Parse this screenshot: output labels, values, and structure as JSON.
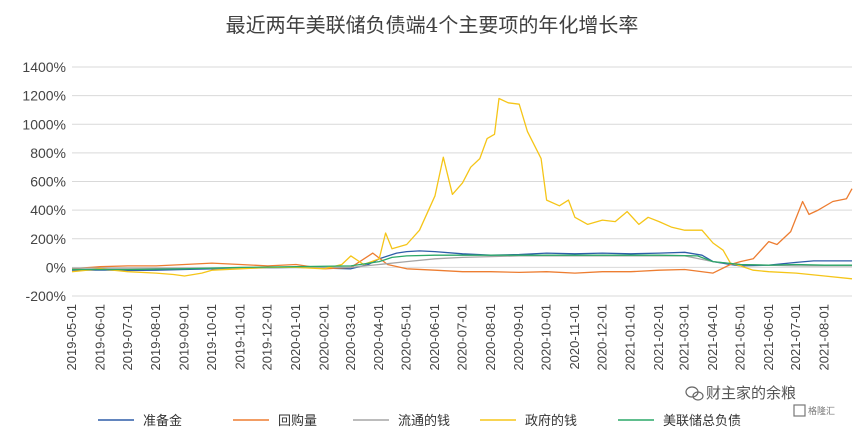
{
  "chart_data": {
    "type": "line",
    "title": "最近两年美联储负债端4个主要项的年化增长率",
    "xlabel": "",
    "ylabel": "",
    "ylim": [
      -200,
      1400
    ],
    "yticks": [
      -200,
      0,
      200,
      400,
      600,
      800,
      1000,
      1200,
      1400
    ],
    "ytick_labels": [
      "-200%",
      "0%",
      "200%",
      "400%",
      "600%",
      "800%",
      "1000%",
      "1200%",
      "1400%"
    ],
    "x_tick_labels": [
      "2019-05-01",
      "2019-06-01",
      "2019-07-01",
      "2019-08-01",
      "2019-09-01",
      "2019-10-01",
      "2019-11-01",
      "2019-12-01",
      "2020-01-01",
      "2020-02-01",
      "2020-03-01",
      "2020-04-01",
      "2020-05-01",
      "2020-06-01",
      "2020-07-01",
      "2020-08-01",
      "2020-09-01",
      "2020-10-01",
      "2020-11-01",
      "2020-12-01",
      "2021-01-01",
      "2021-02-01",
      "2021-03-01",
      "2021-04-01",
      "2021-05-01",
      "2021-06-01",
      "2021-07-01",
      "2021-08-01"
    ],
    "grid": true,
    "legend_position": "bottom",
    "series": [
      {
        "name": "准备金",
        "color": "#2E5DA8",
        "points": [
          [
            "2019-05-01",
            -20
          ],
          [
            "2019-06-01",
            -18
          ],
          [
            "2019-07-01",
            -22
          ],
          [
            "2019-08-01",
            -20
          ],
          [
            "2019-09-01",
            -15
          ],
          [
            "2019-10-01",
            -10
          ],
          [
            "2019-11-01",
            -5
          ],
          [
            "2019-12-01",
            -3
          ],
          [
            "2020-01-01",
            0
          ],
          [
            "2020-02-01",
            -5
          ],
          [
            "2020-03-01",
            -10
          ],
          [
            "2020-03-20",
            20
          ],
          [
            "2020-04-01",
            60
          ],
          [
            "2020-04-20",
            100
          ],
          [
            "2020-05-01",
            110
          ],
          [
            "2020-05-15",
            115
          ],
          [
            "2020-06-01",
            110
          ],
          [
            "2020-07-01",
            95
          ],
          [
            "2020-08-01",
            85
          ],
          [
            "2020-09-01",
            90
          ],
          [
            "2020-10-01",
            100
          ],
          [
            "2020-11-01",
            95
          ],
          [
            "2020-12-01",
            100
          ],
          [
            "2021-01-01",
            95
          ],
          [
            "2021-02-01",
            100
          ],
          [
            "2021-03-01",
            105
          ],
          [
            "2021-03-20",
            85
          ],
          [
            "2021-04-01",
            40
          ],
          [
            "2021-04-20",
            20
          ],
          [
            "2021-05-01",
            10
          ],
          [
            "2021-06-01",
            15
          ],
          [
            "2021-07-01",
            35
          ],
          [
            "2021-07-20",
            45
          ],
          [
            "2021-08-01",
            45
          ],
          [
            "2021-08-31",
            45
          ]
        ]
      },
      {
        "name": "回购量",
        "color": "#ED7D31",
        "points": [
          [
            "2019-05-01",
            -10
          ],
          [
            "2019-06-01",
            5
          ],
          [
            "2019-07-01",
            10
          ],
          [
            "2019-08-01",
            10
          ],
          [
            "2019-09-01",
            20
          ],
          [
            "2019-10-01",
            30
          ],
          [
            "2019-11-01",
            20
          ],
          [
            "2019-12-01",
            10
          ],
          [
            "2020-01-01",
            20
          ],
          [
            "2020-02-01",
            -10
          ],
          [
            "2020-03-01",
            0
          ],
          [
            "2020-03-25",
            100
          ],
          [
            "2020-04-10",
            20
          ],
          [
            "2020-05-01",
            -10
          ],
          [
            "2020-06-01",
            -20
          ],
          [
            "2020-07-01",
            -30
          ],
          [
            "2020-08-01",
            -30
          ],
          [
            "2020-09-01",
            -35
          ],
          [
            "2020-10-01",
            -30
          ],
          [
            "2020-11-01",
            -40
          ],
          [
            "2020-12-01",
            -30
          ],
          [
            "2021-01-01",
            -30
          ],
          [
            "2021-02-01",
            -20
          ],
          [
            "2021-03-01",
            -15
          ],
          [
            "2021-04-01",
            -40
          ],
          [
            "2021-04-20",
            20
          ],
          [
            "2021-05-01",
            40
          ],
          [
            "2021-05-15",
            60
          ],
          [
            "2021-06-01",
            180
          ],
          [
            "2021-06-10",
            160
          ],
          [
            "2021-06-25",
            250
          ],
          [
            "2021-07-08",
            460
          ],
          [
            "2021-07-15",
            370
          ],
          [
            "2021-07-25",
            400
          ],
          [
            "2021-08-10",
            460
          ],
          [
            "2021-08-25",
            480
          ],
          [
            "2021-08-31",
            550
          ]
        ]
      },
      {
        "name": "流通的钱",
        "color": "#A5A5A5",
        "points": [
          [
            "2019-05-01",
            -5
          ],
          [
            "2019-07-01",
            -5
          ],
          [
            "2019-09-01",
            -5
          ],
          [
            "2019-11-01",
            -5
          ],
          [
            "2020-01-01",
            0
          ],
          [
            "2020-03-01",
            0
          ],
          [
            "2020-04-01",
            20
          ],
          [
            "2020-05-01",
            40
          ],
          [
            "2020-06-01",
            60
          ],
          [
            "2020-07-01",
            70
          ],
          [
            "2020-08-01",
            75
          ],
          [
            "2020-09-01",
            80
          ],
          [
            "2020-10-01",
            80
          ],
          [
            "2020-11-01",
            80
          ],
          [
            "2020-12-01",
            80
          ],
          [
            "2021-01-01",
            80
          ],
          [
            "2021-02-01",
            80
          ],
          [
            "2021-03-01",
            80
          ],
          [
            "2021-04-01",
            40
          ],
          [
            "2021-05-01",
            20
          ],
          [
            "2021-06-01",
            15
          ],
          [
            "2021-07-01",
            10
          ],
          [
            "2021-08-01",
            10
          ],
          [
            "2021-08-31",
            10
          ]
        ]
      },
      {
        "name": "政府的钱",
        "color": "#F5C518",
        "points": [
          [
            "2019-05-01",
            -30
          ],
          [
            "2019-06-01",
            -10
          ],
          [
            "2019-07-01",
            -30
          ],
          [
            "2019-08-01",
            -40
          ],
          [
            "2019-08-20",
            -50
          ],
          [
            "2019-09-01",
            -60
          ],
          [
            "2019-09-20",
            -40
          ],
          [
            "2019-10-01",
            -20
          ],
          [
            "2019-11-01",
            -10
          ],
          [
            "2019-12-01",
            0
          ],
          [
            "2020-01-01",
            0
          ],
          [
            "2020-02-01",
            -10
          ],
          [
            "2020-02-20",
            20
          ],
          [
            "2020-03-01",
            80
          ],
          [
            "2020-03-15",
            20
          ],
          [
            "2020-04-01",
            60
          ],
          [
            "2020-04-08",
            240
          ],
          [
            "2020-04-15",
            130
          ],
          [
            "2020-05-01",
            160
          ],
          [
            "2020-05-15",
            260
          ],
          [
            "2020-06-01",
            500
          ],
          [
            "2020-06-10",
            770
          ],
          [
            "2020-06-20",
            510
          ],
          [
            "2020-07-01",
            590
          ],
          [
            "2020-07-10",
            700
          ],
          [
            "2020-07-20",
            760
          ],
          [
            "2020-07-28",
            900
          ],
          [
            "2020-08-05",
            930
          ],
          [
            "2020-08-10",
            1180
          ],
          [
            "2020-08-20",
            1150
          ],
          [
            "2020-09-01",
            1140
          ],
          [
            "2020-09-10",
            950
          ],
          [
            "2020-09-25",
            760
          ],
          [
            "2020-10-01",
            470
          ],
          [
            "2020-10-15",
            430
          ],
          [
            "2020-10-25",
            470
          ],
          [
            "2020-11-01",
            350
          ],
          [
            "2020-11-15",
            300
          ],
          [
            "2020-12-01",
            330
          ],
          [
            "2020-12-15",
            320
          ],
          [
            "2020-12-28",
            390
          ],
          [
            "2021-01-10",
            300
          ],
          [
            "2021-01-20",
            350
          ],
          [
            "2021-02-01",
            320
          ],
          [
            "2021-02-15",
            280
          ],
          [
            "2021-03-01",
            260
          ],
          [
            "2021-03-20",
            260
          ],
          [
            "2021-04-01",
            170
          ],
          [
            "2021-04-12",
            120
          ],
          [
            "2021-04-20",
            30
          ],
          [
            "2021-05-01",
            10
          ],
          [
            "2021-05-15",
            -20
          ],
          [
            "2021-06-01",
            -30
          ],
          [
            "2021-07-01",
            -40
          ],
          [
            "2021-08-01",
            -60
          ],
          [
            "2021-08-31",
            -80
          ]
        ]
      },
      {
        "name": "美联储总负债",
        "color": "#2CA868",
        "points": [
          [
            "2019-05-01",
            -15
          ],
          [
            "2019-07-01",
            -15
          ],
          [
            "2019-09-01",
            -10
          ],
          [
            "2019-11-01",
            0
          ],
          [
            "2020-01-01",
            5
          ],
          [
            "2020-03-01",
            10
          ],
          [
            "2020-04-01",
            40
          ],
          [
            "2020-04-15",
            70
          ],
          [
            "2020-05-01",
            80
          ],
          [
            "2020-06-01",
            85
          ],
          [
            "2020-08-01",
            85
          ],
          [
            "2020-10-01",
            85
          ],
          [
            "2020-12-01",
            85
          ],
          [
            "2021-02-01",
            85
          ],
          [
            "2021-03-15",
            80
          ],
          [
            "2021-04-01",
            40
          ],
          [
            "2021-05-01",
            20
          ],
          [
            "2021-06-01",
            15
          ],
          [
            "2021-07-01",
            20
          ],
          [
            "2021-08-01",
            15
          ],
          [
            "2021-08-31",
            15
          ]
        ]
      }
    ]
  },
  "watermark": {
    "text": "财主家的余粮",
    "sub_text": "格隆汇"
  }
}
